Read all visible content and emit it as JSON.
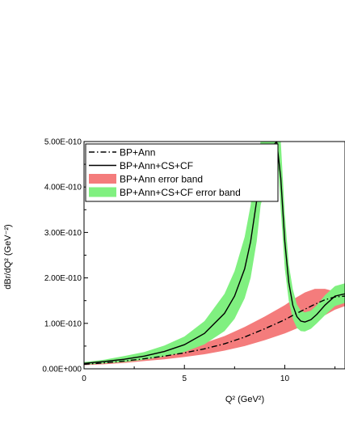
{
  "chart_data": {
    "type": "line",
    "xlabel": "Q² (GeV²)",
    "ylabel": "dBr/dQ² (GeV⁻²)",
    "xlim": [
      0,
      13
    ],
    "ylim": [
      0,
      5e-10
    ],
    "x_ticks": [
      0,
      5,
      10
    ],
    "x_tick_labels": [
      "0",
      "5",
      "10"
    ],
    "y_ticks": [
      0,
      1e-10,
      2e-10,
      3e-10,
      4e-10,
      5e-10
    ],
    "y_tick_labels": [
      "0.00E+000",
      "1.00E-010",
      "2.00E-010",
      "3.00E-010",
      "4.00E-010",
      "5.00E-010"
    ],
    "legend_position": "top-right",
    "grid": false,
    "series": [
      {
        "name": "BP+Ann",
        "kind": "line",
        "style": "dash-dot",
        "color": "#000000",
        "x": [
          0,
          1,
          2,
          3,
          4,
          5,
          6,
          7,
          8,
          9,
          10,
          10.5,
          11,
          11.5,
          12,
          12.5,
          13
        ],
        "y": [
          1e-11,
          1.3e-11,
          1.7e-11,
          2.2e-11,
          2.8e-11,
          3.5e-11,
          4.4e-11,
          5.5e-11,
          7e-11,
          8.8e-11,
          1.08e-10,
          1.2e-10,
          1.31e-10,
          1.42e-10,
          1.52e-10,
          1.58e-10,
          1.6e-10
        ]
      },
      {
        "name": "BP+Ann+CS+CF",
        "kind": "line",
        "style": "solid",
        "color": "#000000",
        "x": [
          0,
          1,
          2,
          3,
          4,
          5,
          6,
          7,
          7.5,
          8,
          8.3,
          8.6,
          8.8,
          9.6,
          9.8,
          10.0,
          10.2,
          10.4,
          10.6,
          10.8,
          11.0,
          11.3,
          11.6,
          12.0,
          12.5,
          13
        ],
        "y": [
          1.2e-11,
          1.6e-11,
          2.1e-11,
          2.8e-11,
          3.8e-11,
          5.3e-11,
          7.8e-11,
          1.22e-10,
          1.6e-10,
          2.2e-10,
          2.8e-10,
          3.7e-10,
          4.6e-10,
          5e-10,
          4.2e-10,
          2.8e-10,
          1.9e-10,
          1.4e-10,
          1.15e-10,
          1.05e-10,
          1.03e-10,
          1.08e-10,
          1.2e-10,
          1.4e-10,
          1.6e-10,
          1.65e-10
        ]
      },
      {
        "name": "BP+Ann error band",
        "kind": "band",
        "color": "#f47c7c",
        "x": [
          0,
          1,
          2,
          3,
          4,
          5,
          6,
          7,
          8,
          9,
          10,
          10.5,
          11,
          11.5,
          12,
          12.5,
          13
        ],
        "lower": [
          8e-12,
          1e-11,
          1.3e-11,
          1.7e-11,
          2.1e-11,
          2.6e-11,
          3.2e-11,
          4e-11,
          5e-11,
          6.3e-11,
          7.8e-11,
          8.7e-11,
          9.6e-11,
          1.06e-10,
          1.18e-10,
          1.3e-10,
          1.38e-10
        ],
        "upper": [
          1.2e-11,
          1.6e-11,
          2.1e-11,
          2.7e-11,
          3.5e-11,
          4.5e-11,
          5.7e-11,
          7.2e-11,
          9.2e-11,
          1.15e-10,
          1.4e-10,
          1.55e-10,
          1.68e-10,
          1.76e-10,
          1.76e-10,
          1.7e-10,
          1.68e-10
        ]
      },
      {
        "name": "BP+Ann+CS+CF error band",
        "kind": "band",
        "color": "#80f080",
        "x": [
          0,
          1,
          2,
          3,
          4,
          5,
          6,
          7,
          7.5,
          8,
          8.3,
          8.6,
          8.8,
          9.6,
          9.8,
          10.0,
          10.2,
          10.4,
          10.6,
          10.8,
          11.0,
          11.3,
          11.6,
          12.0,
          12.5,
          13
        ],
        "lower": [
          9e-12,
          1.2e-11,
          1.5e-11,
          2e-11,
          2.7e-11,
          3.7e-11,
          5.4e-11,
          8.3e-11,
          1.1e-10,
          1.55e-10,
          2e-10,
          2.8e-10,
          3.6e-10,
          5e-10,
          3.5e-10,
          2.2e-10,
          1.5e-10,
          1.1e-10,
          9e-11,
          8.3e-11,
          8.2e-11,
          8.8e-11,
          1e-10,
          1.18e-10,
          1.38e-10,
          1.45e-10
        ],
        "upper": [
          1.5e-11,
          2e-11,
          2.8e-11,
          3.7e-11,
          5.1e-11,
          7.1e-11,
          1.05e-10,
          1.65e-10,
          2.15e-10,
          2.9e-10,
          3.6e-10,
          4.6e-10,
          5e-10,
          5e-10,
          5e-10,
          3.4e-10,
          2.3e-10,
          1.75e-10,
          1.42e-10,
          1.28e-10,
          1.24e-10,
          1.28e-10,
          1.4e-10,
          1.62e-10,
          1.82e-10,
          1.88e-10
        ]
      }
    ]
  }
}
